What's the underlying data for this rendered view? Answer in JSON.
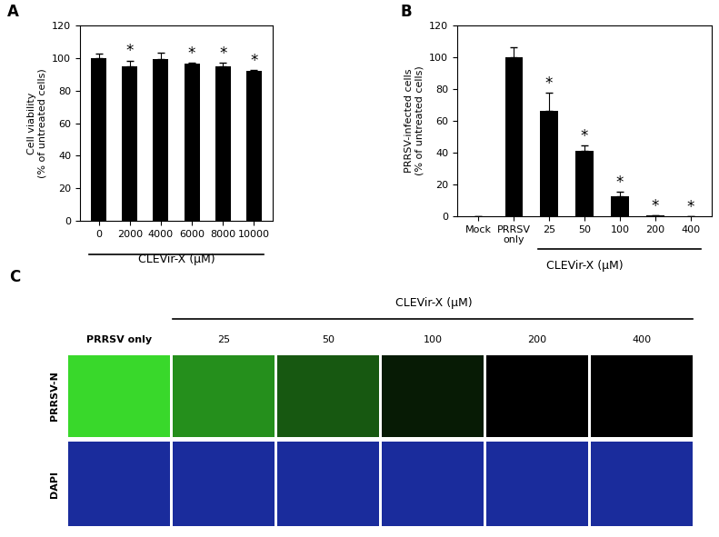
{
  "chart_data": [
    {
      "panel": "A",
      "type": "bar",
      "categories": [
        "0",
        "2000",
        "4000",
        "6000",
        "8000",
        "10000"
      ],
      "values": [
        100,
        95,
        99.5,
        96.5,
        95,
        92
      ],
      "errors": [
        2.5,
        3.5,
        4,
        0.8,
        2.2,
        0.8
      ],
      "significance": [
        null,
        "*",
        null,
        "*",
        "*",
        "*"
      ],
      "ylabel": "Cell viability\n(% of untreated cells)",
      "xlabel": "CLEVir-X (μM)",
      "ylim": [
        0,
        120
      ],
      "yticks": [
        0,
        20,
        40,
        60,
        80,
        100,
        120
      ],
      "color": "#000000"
    },
    {
      "panel": "B",
      "type": "bar",
      "categories": [
        "Mock",
        "PRRSV only",
        "25",
        "50",
        "100",
        "200",
        "400"
      ],
      "values": [
        0,
        100,
        66.5,
        41,
        12.5,
        0.5,
        0
      ],
      "errors": [
        0,
        6.5,
        11,
        3.5,
        3,
        0.2,
        0
      ],
      "significance": [
        null,
        null,
        "*",
        "*",
        "*",
        "*",
        "*"
      ],
      "ylabel": "PRRSV-infected cells\n(% of untreated cells)",
      "xlabel": "CLEVir-X (μM)",
      "ylim": [
        0,
        120
      ],
      "yticks": [
        0,
        20,
        40,
        60,
        80,
        100,
        120
      ],
      "color": "#000000"
    }
  ],
  "image_panel": {
    "panel": "C",
    "title": "CLEVir-X (μM)",
    "columns": [
      "PRRSV only",
      "25",
      "50",
      "100",
      "200",
      "400"
    ],
    "rows": [
      "PRRSV-N",
      "DAPI"
    ]
  }
}
